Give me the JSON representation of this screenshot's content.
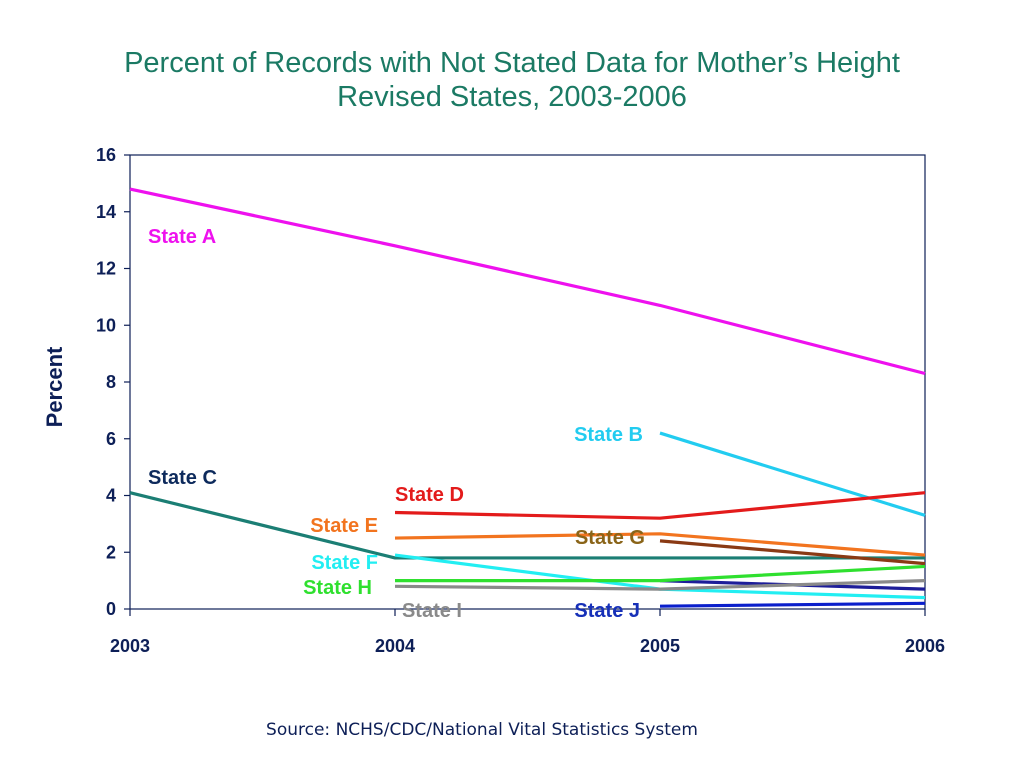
{
  "chart_data": {
    "type": "line",
    "title": [
      "Percent of Records with Not Stated Data for Mother’s Height",
      "Revised States, 2003-2006"
    ],
    "ylabel": "Percent",
    "xlabel": "",
    "x": [
      2003,
      2004,
      2005,
      2006
    ],
    "ylim": [
      0,
      16
    ],
    "yticks": [
      0,
      2,
      4,
      6,
      8,
      10,
      12,
      14,
      16
    ],
    "xticks": [
      "2003",
      "2004",
      "2005",
      "2006"
    ],
    "grid": false,
    "series": [
      {
        "name": "State A",
        "color": "#ee11ee",
        "x": [
          2003,
          2004,
          2005,
          2006
        ],
        "values": [
          14.8,
          12.8,
          10.7,
          8.3
        ]
      },
      {
        "name": "State B",
        "color": "#22ccf0",
        "x": [
          2005,
          2006
        ],
        "values": [
          6.2,
          3.3
        ]
      },
      {
        "name": "State C",
        "color": "#1b7e74",
        "x": [
          2003,
          2004,
          2005,
          2006
        ],
        "values": [
          4.1,
          1.8,
          1.8,
          1.8
        ]
      },
      {
        "name": "State D",
        "color": "#e31b1b",
        "x": [
          2004,
          2005,
          2006
        ],
        "values": [
          3.4,
          3.2,
          4.1
        ]
      },
      {
        "name": "State E",
        "color": "#f2741f",
        "x": [
          2004,
          2005,
          2006
        ],
        "values": [
          2.5,
          2.65,
          1.9
        ]
      },
      {
        "name": "State F",
        "color": "#22eef2",
        "x": [
          2004,
          2005,
          2006
        ],
        "values": [
          1.9,
          0.7,
          0.4
        ]
      },
      {
        "name": "State G",
        "color": "#8a3a14",
        "x": [
          2005,
          2006
        ],
        "values": [
          2.4,
          1.6
        ]
      },
      {
        "name": "State H",
        "color": "#2fe02f",
        "x": [
          2004,
          2005,
          2006
        ],
        "values": [
          1.0,
          1.0,
          1.5
        ]
      },
      {
        "name": "State I",
        "color": "#8a8a8a",
        "x": [
          2004,
          2005,
          2006
        ],
        "values": [
          0.8,
          0.7,
          1.0
        ]
      },
      {
        "name": "State J",
        "color": "#0a1fcc",
        "x": [
          2005,
          2006
        ],
        "values": [
          0.1,
          0.2
        ]
      }
    ],
    "other_lines": [
      {
        "color": "#1d1d99",
        "x": [
          2005,
          2006
        ],
        "values": [
          1.0,
          0.7
        ]
      }
    ]
  },
  "source": "Source: NCHS/CDC/National Vital Statistics System"
}
